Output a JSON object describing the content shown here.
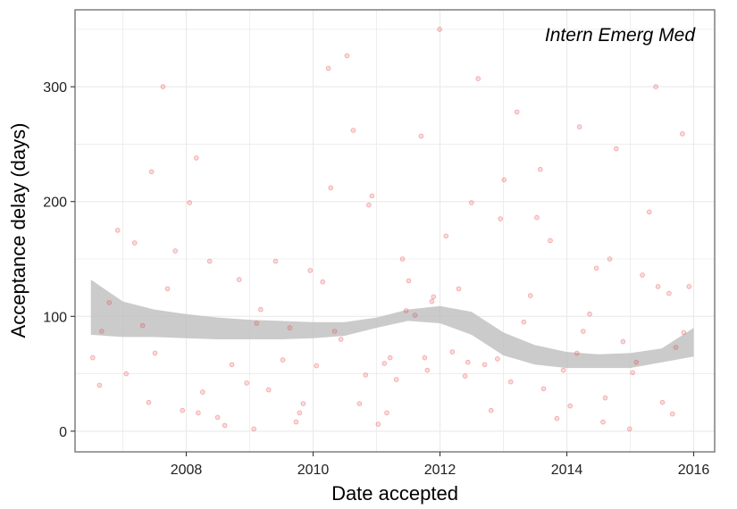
{
  "chart_data": {
    "type": "scatter",
    "title": "",
    "annotation": "Intern Emerg Med",
    "xlabel": "Date accepted",
    "ylabel": "Acceptance delay (days)",
    "x_ticks": [
      "2008",
      "2010",
      "2012",
      "2014",
      "2016"
    ],
    "y_ticks": [
      "0",
      "100",
      "200",
      "300"
    ],
    "xlim": [
      "2006-04-01",
      "2016-05-01"
    ],
    "ylim": [
      -18,
      367
    ],
    "grid": true,
    "legend": "none",
    "colors": {
      "points": "#e8474c",
      "band": "#bdbdbd",
      "grid": "#ebebeb",
      "border": "#7f7f7f"
    },
    "series": [
      {
        "kind": "points",
        "note": "individual articles (representative estimate)",
        "x": [
          "2006-07-12",
          "2006-09-01",
          "2006-10-15",
          "2006-12-02",
          "2007-01-20",
          "2007-03-10",
          "2007-04-25",
          "2007-05-30",
          "2007-07-05",
          "2007-08-20",
          "2007-09-15",
          "2007-10-30",
          "2007-12-10",
          "2008-01-20",
          "2008-02-28",
          "2008-04-05",
          "2008-05-15",
          "2008-06-30",
          "2008-08-10",
          "2008-09-20",
          "2008-11-01",
          "2008-12-15",
          "2009-01-25",
          "2009-03-05",
          "2009-04-20",
          "2009-05-30",
          "2009-07-10",
          "2009-08-20",
          "2009-09-25",
          "2009-11-05",
          "2009-12-15",
          "2010-01-20",
          "2010-02-25",
          "2010-03-30",
          "2010-05-05",
          "2010-06-10",
          "2010-07-15",
          "2010-08-20",
          "2010-09-25",
          "2010-10-30",
          "2010-12-05",
          "2011-01-10",
          "2011-02-15",
          "2011-03-20",
          "2011-04-25",
          "2011-05-30",
          "2011-07-05",
          "2011-08-10",
          "2011-09-15",
          "2011-10-20",
          "2011-11-25",
          "2011-12-30",
          "2012-02-05",
          "2012-03-12",
          "2012-04-18",
          "2012-05-25",
          "2012-07-01",
          "2012-08-08",
          "2012-09-15",
          "2012-10-22",
          "2012-11-28",
          "2013-01-05",
          "2013-02-12",
          "2013-03-20",
          "2013-04-28",
          "2013-06-05",
          "2013-07-12",
          "2013-08-20",
          "2013-09-28",
          "2013-11-05",
          "2013-12-12",
          "2014-01-20",
          "2014-02-28",
          "2014-04-05",
          "2014-05-12",
          "2014-06-20",
          "2014-07-28",
          "2014-09-05",
          "2014-10-12",
          "2014-11-20",
          "2014-12-28",
          "2015-02-05",
          "2015-03-12",
          "2015-04-20",
          "2015-05-28",
          "2015-07-05",
          "2015-08-12",
          "2015-09-20",
          "2015-10-28",
          "2015-12-05",
          "2006-08-20",
          "2007-06-15",
          "2008-03-10",
          "2009-02-10",
          "2009-10-15",
          "2010-04-12",
          "2010-11-18",
          "2011-06-20",
          "2011-10-05",
          "2012-06-10",
          "2013-08-01",
          "2014-03-15",
          "2014-08-10",
          "2015-01-15",
          "2015-06-10",
          "2015-11-05",
          "2011-03-01",
          "2011-11-15",
          "2012-12-15",
          "2015-09-01"
        ],
        "y": [
          64,
          87,
          112,
          175,
          50,
          164,
          92,
          25,
          68,
          300,
          124,
          157,
          18,
          199,
          238,
          34,
          148,
          12,
          5,
          58,
          132,
          42,
          2,
          106,
          36,
          148,
          62,
          90,
          8,
          24,
          140,
          57,
          130,
          316,
          87,
          80,
          327,
          262,
          24,
          49,
          205,
          6,
          59,
          64,
          45,
          150,
          131,
          101,
          257,
          53,
          117,
          350,
          170,
          69,
          124,
          48,
          199,
          307,
          58,
          18,
          63,
          219,
          43,
          278,
          95,
          118,
          186,
          37,
          166,
          11,
          53,
          22,
          68,
          87,
          102,
          142,
          8,
          150,
          246,
          78,
          2,
          60,
          136,
          191,
          300,
          25,
          120,
          73,
          259,
          126,
          40,
          226,
          16,
          94,
          16,
          212,
          197,
          105,
          64,
          60,
          228,
          265,
          29,
          51,
          126,
          86,
          16,
          113,
          185,
          15
        ],
        "area": []
      },
      {
        "kind": "smooth_band",
        "note": "LOESS confidence band (estimated)",
        "x": [
          "2006-07-01",
          "2007-01-01",
          "2007-07-01",
          "2008-01-01",
          "2008-07-01",
          "2009-01-01",
          "2009-07-01",
          "2010-01-01",
          "2010-07-01",
          "2011-01-01",
          "2011-07-01",
          "2012-01-01",
          "2012-07-01",
          "2013-01-01",
          "2013-07-01",
          "2014-01-01",
          "2014-07-01",
          "2015-01-01",
          "2015-07-01",
          "2016-01-01"
        ],
        "upper": [
          132,
          113,
          106,
          102,
          99,
          97,
          96,
          95,
          95,
          99,
          106,
          109,
          104,
          86,
          75,
          69,
          67,
          68,
          72,
          90
        ],
        "lower": [
          84,
          82,
          82,
          81,
          80,
          80,
          80,
          81,
          83,
          90,
          96,
          94,
          84,
          66,
          58,
          55,
          55,
          55,
          60,
          65
        ]
      }
    ]
  }
}
